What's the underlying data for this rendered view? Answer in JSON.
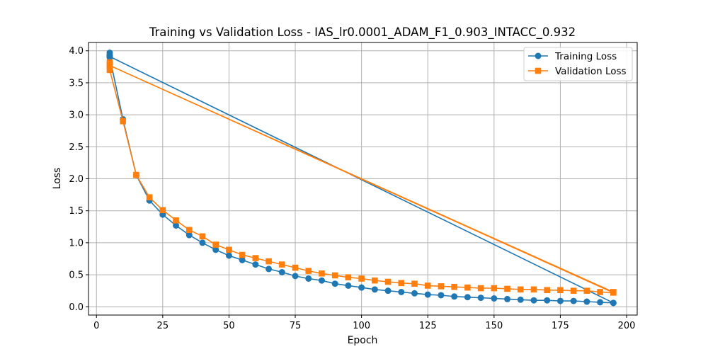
{
  "chart_data": {
    "type": "line",
    "title": "Training vs Validation Loss - IAS_lr0.0001_ADAM_F1_0.903_INTACC_0.932",
    "xlabel": "Epoch",
    "ylabel": "Loss",
    "xlim": [
      -3,
      204
    ],
    "ylim": [
      -0.13,
      4.13
    ],
    "xticks": [
      0,
      25,
      50,
      75,
      100,
      125,
      150,
      175,
      200
    ],
    "yticks": [
      0.0,
      0.5,
      1.0,
      1.5,
      2.0,
      2.5,
      3.0,
      3.5,
      4.0
    ],
    "grid": true,
    "legend_position": "top-right",
    "series": [
      {
        "name": "Training Loss",
        "color": "#1f77b4",
        "marker": "circle",
        "x": [
          5,
          5,
          5,
          10,
          15,
          20,
          25,
          30,
          35,
          40,
          45,
          50,
          55,
          60,
          65,
          70,
          75,
          80,
          85,
          90,
          95,
          100,
          105,
          110,
          115,
          120,
          125,
          130,
          135,
          140,
          145,
          150,
          155,
          160,
          165,
          170,
          175,
          180,
          185,
          190,
          195,
          5,
          195
        ],
        "y": [
          3.97,
          3.93,
          3.9,
          2.93,
          2.06,
          1.66,
          1.44,
          1.27,
          1.12,
          1.0,
          0.89,
          0.8,
          0.73,
          0.66,
          0.59,
          0.54,
          0.48,
          0.44,
          0.41,
          0.36,
          0.33,
          0.3,
          0.27,
          0.25,
          0.23,
          0.21,
          0.19,
          0.18,
          0.16,
          0.15,
          0.14,
          0.13,
          0.12,
          0.11,
          0.1,
          0.1,
          0.09,
          0.09,
          0.08,
          0.07,
          0.06,
          3.91,
          0.06
        ]
      },
      {
        "name": "Validation Loss",
        "color": "#ff7f0e",
        "marker": "square",
        "x": [
          5,
          5,
          5,
          10,
          15,
          20,
          25,
          30,
          35,
          40,
          45,
          50,
          55,
          60,
          65,
          70,
          75,
          80,
          85,
          90,
          95,
          100,
          105,
          110,
          115,
          120,
          125,
          130,
          135,
          140,
          145,
          150,
          155,
          160,
          165,
          170,
          175,
          180,
          185,
          190,
          195,
          5,
          195
        ],
        "y": [
          3.82,
          3.77,
          3.7,
          2.9,
          2.06,
          1.71,
          1.51,
          1.35,
          1.2,
          1.1,
          0.97,
          0.89,
          0.81,
          0.76,
          0.71,
          0.66,
          0.61,
          0.56,
          0.52,
          0.49,
          0.46,
          0.44,
          0.41,
          0.39,
          0.37,
          0.36,
          0.33,
          0.32,
          0.31,
          0.3,
          0.29,
          0.29,
          0.28,
          0.27,
          0.27,
          0.26,
          0.26,
          0.25,
          0.25,
          0.23,
          0.22,
          3.77,
          0.23
        ]
      }
    ]
  }
}
